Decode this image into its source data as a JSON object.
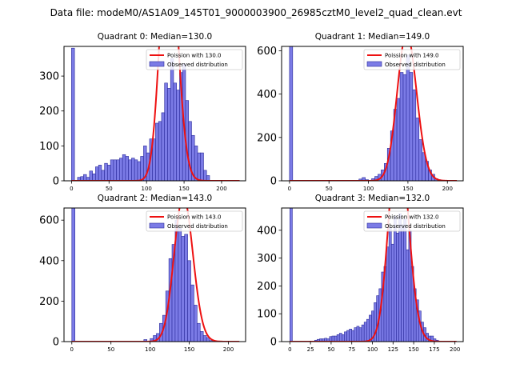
{
  "suptitle": "Data file: modeM0/AS1A09_145T01_9000003900_26985cztM0_level2_quad_clean.evt",
  "colors": {
    "bar_fill": "#7b7be6",
    "bar_edge": "#2a2a9a",
    "curve": "#ee1111"
  },
  "legend": {
    "observed_label": "Observed distribution"
  },
  "chart_data": [
    {
      "type": "bar",
      "title": "Quadrant 0: Median=130.0",
      "median": 130.0,
      "poisson_label": "Poission with 130.0",
      "xlim": [
        -10,
        232
      ],
      "ylim": [
        0,
        385
      ],
      "xticks": [
        0,
        50,
        100,
        150,
        200
      ],
      "yticks": [
        0,
        100,
        200,
        300
      ],
      "bin_width": 4,
      "bins": [
        [
          0,
          380
        ],
        [
          8,
          10
        ],
        [
          12,
          12
        ],
        [
          16,
          18
        ],
        [
          20,
          10
        ],
        [
          24,
          28
        ],
        [
          28,
          20
        ],
        [
          32,
          40
        ],
        [
          36,
          45
        ],
        [
          40,
          30
        ],
        [
          44,
          50
        ],
        [
          48,
          45
        ],
        [
          52,
          60
        ],
        [
          56,
          60
        ],
        [
          60,
          60
        ],
        [
          64,
          65
        ],
        [
          68,
          75
        ],
        [
          72,
          70
        ],
        [
          76,
          60
        ],
        [
          80,
          65
        ],
        [
          84,
          60
        ],
        [
          88,
          55
        ],
        [
          92,
          70
        ],
        [
          96,
          100
        ],
        [
          100,
          80
        ],
        [
          104,
          120
        ],
        [
          108,
          120
        ],
        [
          112,
          165
        ],
        [
          116,
          170
        ],
        [
          120,
          195
        ],
        [
          124,
          280
        ],
        [
          128,
          265
        ],
        [
          132,
          350
        ],
        [
          136,
          280
        ],
        [
          140,
          260
        ],
        [
          144,
          310
        ],
        [
          148,
          335
        ],
        [
          152,
          230
        ],
        [
          156,
          170
        ],
        [
          160,
          130
        ],
        [
          164,
          100
        ],
        [
          168,
          80
        ],
        [
          172,
          80
        ],
        [
          176,
          30
        ],
        [
          180,
          15
        ]
      ]
    },
    {
      "type": "bar",
      "title": "Quadrant 1: Median=149.0",
      "median": 149.0,
      "poisson_label": "Poission with 149.0",
      "xlim": [
        -10,
        220
      ],
      "ylim": [
        0,
        620
      ],
      "xticks": [
        0,
        50,
        100,
        150,
        200
      ],
      "yticks": [
        0,
        200,
        400,
        600
      ],
      "bin_width": 4,
      "bins": [
        [
          0,
          620
        ],
        [
          88,
          8
        ],
        [
          92,
          15
        ],
        [
          96,
          5
        ],
        [
          104,
          10
        ],
        [
          108,
          20
        ],
        [
          112,
          30
        ],
        [
          116,
          50
        ],
        [
          120,
          80
        ],
        [
          124,
          150
        ],
        [
          128,
          230
        ],
        [
          132,
          330
        ],
        [
          136,
          380
        ],
        [
          140,
          500
        ],
        [
          144,
          490
        ],
        [
          148,
          580
        ],
        [
          152,
          500
        ],
        [
          156,
          420
        ],
        [
          160,
          290
        ],
        [
          164,
          190
        ],
        [
          168,
          130
        ],
        [
          172,
          90
        ],
        [
          176,
          50
        ],
        [
          180,
          30
        ],
        [
          184,
          10
        ],
        [
          188,
          5
        ]
      ]
    },
    {
      "type": "bar",
      "title": "Quadrant 2: Median=143.0",
      "median": 143.0,
      "poisson_label": "Poission with 143.0",
      "xlim": [
        -10,
        222
      ],
      "ylim": [
        0,
        660
      ],
      "xticks": [
        0,
        50,
        100,
        150,
        200
      ],
      "yticks": [
        0,
        200,
        400,
        600
      ],
      "bin_width": 4,
      "bins": [
        [
          0,
          660
        ],
        [
          92,
          10
        ],
        [
          100,
          15
        ],
        [
          104,
          30
        ],
        [
          108,
          40
        ],
        [
          112,
          90
        ],
        [
          116,
          130
        ],
        [
          120,
          250
        ],
        [
          124,
          410
        ],
        [
          128,
          480
        ],
        [
          132,
          600
        ],
        [
          136,
          560
        ],
        [
          140,
          520
        ],
        [
          144,
          530
        ],
        [
          148,
          400
        ],
        [
          152,
          280
        ],
        [
          156,
          180
        ],
        [
          160,
          90
        ],
        [
          164,
          50
        ],
        [
          168,
          30
        ],
        [
          172,
          20
        ],
        [
          176,
          5
        ]
      ]
    },
    {
      "type": "bar",
      "title": "Quadrant 3: Median=132.0",
      "median": 132.0,
      "poisson_label": "Poission with 132.0",
      "xlim": [
        -10,
        210
      ],
      "ylim": [
        0,
        480
      ],
      "xticks": [
        0,
        25,
        50,
        75,
        100,
        125,
        150,
        175,
        200
      ],
      "yticks": [
        0,
        100,
        200,
        300,
        400
      ],
      "bin_width": 3,
      "bins": [
        [
          0,
          480
        ],
        [
          30,
          5
        ],
        [
          33,
          8
        ],
        [
          36,
          10
        ],
        [
          39,
          10
        ],
        [
          42,
          12
        ],
        [
          45,
          10
        ],
        [
          48,
          18
        ],
        [
          51,
          20
        ],
        [
          54,
          20
        ],
        [
          57,
          25
        ],
        [
          60,
          30
        ],
        [
          63,
          25
        ],
        [
          66,
          35
        ],
        [
          69,
          40
        ],
        [
          72,
          45
        ],
        [
          75,
          40
        ],
        [
          78,
          50
        ],
        [
          81,
          55
        ],
        [
          84,
          50
        ],
        [
          87,
          60
        ],
        [
          90,
          70
        ],
        [
          93,
          80
        ],
        [
          96,
          95
        ],
        [
          99,
          110
        ],
        [
          102,
          140
        ],
        [
          105,
          165
        ],
        [
          108,
          190
        ],
        [
          111,
          250
        ],
        [
          114,
          270
        ],
        [
          117,
          340
        ],
        [
          120,
          410
        ],
        [
          123,
          350
        ],
        [
          126,
          450
        ],
        [
          129,
          390
        ],
        [
          132,
          460
        ],
        [
          135,
          420
        ],
        [
          138,
          440
        ],
        [
          141,
          330
        ],
        [
          144,
          400
        ],
        [
          147,
          270
        ],
        [
          150,
          190
        ],
        [
          153,
          150
        ],
        [
          156,
          110
        ],
        [
          159,
          70
        ],
        [
          162,
          50
        ],
        [
          165,
          30
        ],
        [
          168,
          20
        ],
        [
          171,
          20
        ],
        [
          174,
          10
        ],
        [
          177,
          5
        ]
      ]
    }
  ]
}
